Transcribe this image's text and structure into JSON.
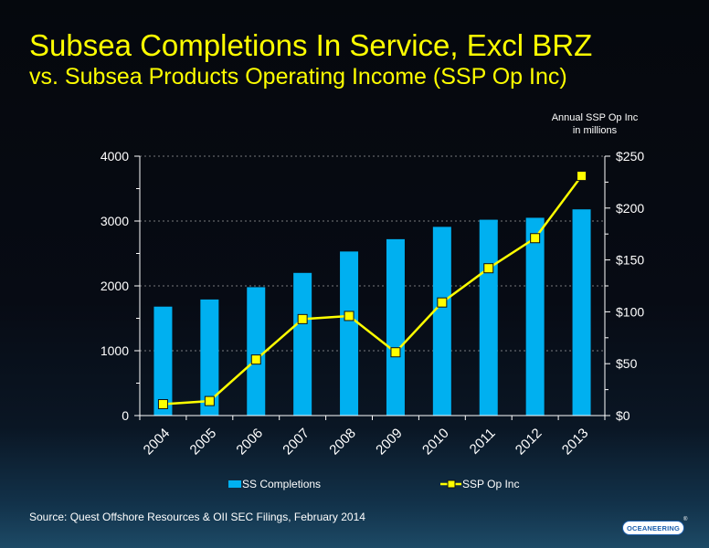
{
  "title": "Subsea Completions In Service, Excl BRZ",
  "subtitle": "vs. Subsea Products Operating Income (SSP Op Inc)",
  "right_axis_title_line1": "Annual SSP Op Inc",
  "right_axis_title_line2": "in millions",
  "source": "Source:  Quest Offshore Resources & OII SEC Filings, February 2014",
  "logo_text": "OCEANEERING",
  "logo_mark": "®",
  "colors": {
    "title": "#ffff00",
    "bar": "#00b0f0",
    "line": "#ffff00",
    "text": "#ffffff"
  },
  "chart_data": {
    "type": "bar",
    "categories": [
      "2004",
      "2005",
      "2006",
      "2007",
      "2008",
      "2009",
      "2010",
      "2011",
      "2012",
      "2013"
    ],
    "series": [
      {
        "name": "SS Completions",
        "type": "bar",
        "axis": "left",
        "values": [
          1680,
          1790,
          1980,
          2200,
          2530,
          2720,
          2910,
          3020,
          3050,
          3180
        ]
      },
      {
        "name": "SSP Op Inc",
        "type": "line",
        "axis": "right",
        "values": [
          11,
          14,
          54,
          93,
          96,
          61,
          109,
          142,
          171,
          231
        ]
      }
    ],
    "y_left": {
      "ylim": [
        0,
        4000
      ],
      "ticks": [
        0,
        1000,
        2000,
        3000,
        4000
      ]
    },
    "y_right": {
      "ylim": [
        0,
        250
      ],
      "ticks": [
        "$0",
        "$50",
        "$100",
        "$150",
        "$200",
        "$250"
      ]
    },
    "legend": "bottom"
  }
}
